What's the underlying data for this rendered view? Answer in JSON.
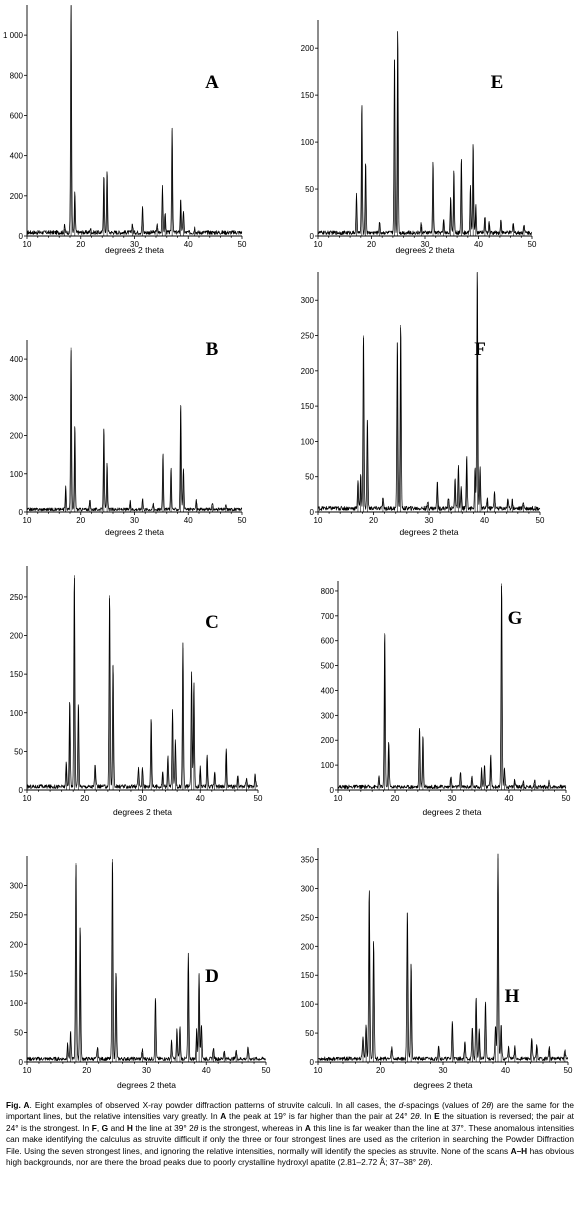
{
  "chart_data": [
    {
      "type": "line",
      "title": "A",
      "xlabel": "degrees 2 theta",
      "ylabel": "",
      "xlim": [
        10,
        50
      ],
      "ylim": [
        0,
        1150
      ],
      "xticks": [
        10,
        20,
        30,
        40,
        50
      ],
      "yticks": [
        0,
        200,
        400,
        600,
        800,
        1000
      ],
      "ytick_labels": [
        "0",
        "200",
        "400",
        "600",
        "800",
        "1 000"
      ],
      "series": [
        {
          "peaks": [
            [
              17.0,
              35
            ],
            [
              18.2,
              1150
            ],
            [
              18.9,
              200
            ],
            [
              21.8,
              20
            ],
            [
              24.3,
              290
            ],
            [
              24.9,
              305
            ],
            [
              29.6,
              45
            ],
            [
              31.5,
              125
            ],
            [
              34.2,
              40
            ],
            [
              35.2,
              235
            ],
            [
              35.7,
              100
            ],
            [
              37.0,
              525
            ],
            [
              38.6,
              170
            ],
            [
              39.1,
              110
            ],
            [
              41.2,
              25
            ]
          ]
        }
      ]
    },
    {
      "type": "line",
      "title": "E",
      "xlabel": "degrees 2 theta",
      "ylabel": "",
      "xlim": [
        10,
        50
      ],
      "ylim": [
        0,
        230
      ],
      "xticks": [
        10,
        20,
        30,
        40,
        50
      ],
      "yticks": [
        0,
        50,
        100,
        150,
        200
      ],
      "ytick_labels": [
        "0",
        "50",
        "100",
        "150",
        "200"
      ],
      "series": [
        {
          "peaks": [
            [
              17.2,
              40
            ],
            [
              18.2,
              137
            ],
            [
              18.9,
              76
            ],
            [
              21.5,
              12
            ],
            [
              24.3,
              188
            ],
            [
              24.9,
              218
            ],
            [
              29.3,
              10
            ],
            [
              31.5,
              75
            ],
            [
              33.5,
              15
            ],
            [
              34.8,
              40
            ],
            [
              35.4,
              67
            ],
            [
              36.8,
              80
            ],
            [
              38.5,
              50
            ],
            [
              39.0,
              95
            ],
            [
              39.5,
              30
            ],
            [
              41.2,
              18
            ],
            [
              42.0,
              12
            ],
            [
              44.2,
              15
            ],
            [
              46.5,
              12
            ],
            [
              48.5,
              10
            ]
          ]
        }
      ]
    },
    {
      "type": "line",
      "title": "B",
      "xlabel": "degrees 2 theta",
      "ylabel": "",
      "xlim": [
        10,
        50
      ],
      "ylim": [
        0,
        450
      ],
      "xticks": [
        10,
        20,
        30,
        40,
        50
      ],
      "yticks": [
        0,
        100,
        200,
        300,
        400
      ],
      "ytick_labels": [
        "0",
        "100",
        "200",
        "300",
        "400"
      ],
      "series": [
        {
          "peaks": [
            [
              17.2,
              60
            ],
            [
              18.2,
              430
            ],
            [
              18.9,
              220
            ],
            [
              21.7,
              25
            ],
            [
              24.3,
              218
            ],
            [
              24.9,
              120
            ],
            [
              29.2,
              20
            ],
            [
              31.5,
              30
            ],
            [
              33.5,
              15
            ],
            [
              35.3,
              148
            ],
            [
              36.8,
              110
            ],
            [
              38.6,
              280
            ],
            [
              39.1,
              110
            ],
            [
              41.5,
              25
            ],
            [
              44.5,
              15
            ],
            [
              47.0,
              10
            ]
          ]
        }
      ]
    },
    {
      "type": "line",
      "title": "F",
      "xlabel": "degrees 2 theta",
      "ylabel": "",
      "xlim": [
        10,
        50
      ],
      "ylim": [
        0,
        340
      ],
      "xticks": [
        10,
        20,
        30,
        40,
        50
      ],
      "yticks": [
        0,
        50,
        100,
        150,
        200,
        250,
        300
      ],
      "ytick_labels": [
        "0",
        "50",
        "100",
        "150",
        "200",
        "250",
        "300"
      ],
      "series": [
        {
          "peaks": [
            [
              17.2,
              40
            ],
            [
              17.7,
              50
            ],
            [
              18.2,
              250
            ],
            [
              18.9,
              130
            ],
            [
              21.7,
              15
            ],
            [
              24.3,
              240
            ],
            [
              24.9,
              265
            ],
            [
              29.8,
              10
            ],
            [
              31.5,
              40
            ],
            [
              33.5,
              15
            ],
            [
              34.7,
              45
            ],
            [
              35.3,
              60
            ],
            [
              35.8,
              30
            ],
            [
              36.8,
              75
            ],
            [
              38.3,
              60
            ],
            [
              38.7,
              340
            ],
            [
              39.2,
              60
            ],
            [
              40.5,
              15
            ],
            [
              41.8,
              25
            ],
            [
              44.2,
              15
            ],
            [
              45.0,
              12
            ],
            [
              47.0,
              10
            ]
          ]
        }
      ]
    },
    {
      "type": "line",
      "title": "C",
      "xlabel": "degrees 2 theta",
      "ylabel": "",
      "xlim": [
        10,
        50
      ],
      "ylim": [
        0,
        290
      ],
      "xticks": [
        10,
        20,
        30,
        40,
        50
      ],
      "yticks": [
        0,
        50,
        100,
        150,
        200,
        250
      ],
      "ytick_labels": [
        "0",
        "50",
        "100",
        "150",
        "200",
        "250"
      ],
      "series": [
        {
          "peaks": [
            [
              16.8,
              30
            ],
            [
              17.4,
              113
            ],
            [
              18.2,
              278
            ],
            [
              18.9,
              108
            ],
            [
              21.8,
              30
            ],
            [
              24.3,
              252
            ],
            [
              24.9,
              162
            ],
            [
              29.3,
              25
            ],
            [
              30.0,
              25
            ],
            [
              31.5,
              90
            ],
            [
              33.5,
              20
            ],
            [
              34.4,
              40
            ],
            [
              35.2,
              100
            ],
            [
              35.7,
              60
            ],
            [
              37.0,
              184
            ],
            [
              38.5,
              148
            ],
            [
              38.9,
              135
            ],
            [
              40.0,
              25
            ],
            [
              41.2,
              42
            ],
            [
              42.5,
              20
            ],
            [
              44.5,
              50
            ],
            [
              46.5,
              15
            ],
            [
              48.0,
              12
            ],
            [
              49.5,
              18
            ]
          ]
        }
      ]
    },
    {
      "type": "line",
      "title": "G",
      "xlabel": "degrees 2 theta",
      "ylabel": "",
      "xlim": [
        10,
        50
      ],
      "ylim": [
        0,
        840
      ],
      "xticks": [
        10,
        20,
        30,
        40,
        50
      ],
      "yticks": [
        0,
        100,
        200,
        300,
        400,
        500,
        600,
        700,
        800
      ],
      "ytick_labels": [
        "0",
        "100",
        "200",
        "300",
        "400",
        "500",
        "600",
        "700",
        "800"
      ],
      "series": [
        {
          "peaks": [
            [
              17.2,
              40
            ],
            [
              18.2,
              630
            ],
            [
              18.9,
              190
            ],
            [
              24.3,
              240
            ],
            [
              24.9,
              210
            ],
            [
              29.8,
              45
            ],
            [
              31.5,
              60
            ],
            [
              33.5,
              40
            ],
            [
              35.2,
              70
            ],
            [
              35.7,
              90
            ],
            [
              36.8,
              130
            ],
            [
              38.7,
              830
            ],
            [
              39.2,
              80
            ],
            [
              41.0,
              30
            ],
            [
              42.5,
              25
            ],
            [
              44.5,
              25
            ],
            [
              47.0,
              20
            ]
          ]
        }
      ]
    },
    {
      "type": "line",
      "title": "D",
      "xlabel": "degrees 2 theta",
      "ylabel": "",
      "xlim": [
        10,
        50
      ],
      "ylim": [
        0,
        350
      ],
      "xticks": [
        10,
        20,
        30,
        40,
        50
      ],
      "yticks": [
        0,
        50,
        100,
        150,
        200,
        250,
        300
      ],
      "ytick_labels": [
        "0",
        "50",
        "100",
        "150",
        "200",
        "250",
        "300"
      ],
      "series": [
        {
          "peaks": [
            [
              16.8,
              25
            ],
            [
              17.3,
              45
            ],
            [
              18.2,
              338
            ],
            [
              18.9,
              228
            ],
            [
              21.8,
              20
            ],
            [
              24.3,
              345
            ],
            [
              24.9,
              150
            ],
            [
              29.3,
              15
            ],
            [
              31.5,
              105
            ],
            [
              34.2,
              30
            ],
            [
              35.1,
              50
            ],
            [
              35.6,
              55
            ],
            [
              37.0,
              178
            ],
            [
              38.4,
              50
            ],
            [
              38.8,
              148
            ],
            [
              39.2,
              60
            ],
            [
              41.2,
              20
            ],
            [
              43.0,
              15
            ],
            [
              45.0,
              15
            ],
            [
              47.0,
              20
            ]
          ]
        }
      ]
    },
    {
      "type": "line",
      "title": "H",
      "xlabel": "degrees 2 theta",
      "ylabel": "",
      "xlim": [
        10,
        50
      ],
      "ylim": [
        0,
        370
      ],
      "xticks": [
        10,
        20,
        30,
        40,
        50
      ],
      "yticks": [
        0,
        50,
        100,
        150,
        200,
        250,
        300,
        350
      ],
      "ytick_labels": [
        "0",
        "50",
        "100",
        "150",
        "200",
        "250",
        "300",
        "350"
      ],
      "series": [
        {
          "peaks": [
            [
              17.2,
              40
            ],
            [
              17.7,
              60
            ],
            [
              18.2,
              297
            ],
            [
              18.9,
              205
            ],
            [
              21.8,
              20
            ],
            [
              24.3,
              258
            ],
            [
              24.9,
              168
            ],
            [
              29.3,
              25
            ],
            [
              31.5,
              65
            ],
            [
              33.5,
              30
            ],
            [
              34.7,
              55
            ],
            [
              35.3,
              110
            ],
            [
              35.8,
              50
            ],
            [
              36.8,
              100
            ],
            [
              38.4,
              60
            ],
            [
              38.8,
              352
            ],
            [
              39.3,
              60
            ],
            [
              40.5,
              20
            ],
            [
              41.5,
              20
            ],
            [
              44.2,
              35
            ],
            [
              45.0,
              25
            ],
            [
              47.0,
              20
            ],
            [
              49.5,
              15
            ]
          ]
        }
      ]
    }
  ],
  "caption": {
    "fig_label": "Fig. A",
    "segments": [
      {
        "text": "Fig. A",
        "bold": true
      },
      {
        "text": ". Eight examples of observed X-ray powder diffraction patterns of struvite calculi. In all cases, the "
      },
      {
        "text": "d",
        "italic": true
      },
      {
        "text": "-spacings (values of 2"
      },
      {
        "text": "θ",
        "italic": true
      },
      {
        "text": ") are the same for the important lines, but the relative intensities vary greatly. In "
      },
      {
        "text": "A",
        "bold": true
      },
      {
        "text": " the peak at 19° is far higher than the pair at 24° 2"
      },
      {
        "text": "θ",
        "italic": true
      },
      {
        "text": ". In "
      },
      {
        "text": "E",
        "bold": true
      },
      {
        "text": " the situation is reversed; the pair at 24° is the strongest. In "
      },
      {
        "text": "F",
        "bold": true
      },
      {
        "text": ", "
      },
      {
        "text": "G",
        "bold": true
      },
      {
        "text": " and "
      },
      {
        "text": "H",
        "bold": true
      },
      {
        "text": " the line at 39° 2"
      },
      {
        "text": "θ",
        "italic": true
      },
      {
        "text": " is the strongest, whereas in "
      },
      {
        "text": "A",
        "bold": true
      },
      {
        "text": " this line is far weaker than the line at 37°. These anomalous intensities can make identifying the calculus as struvite difficult if only the three or four strongest lines are used as the criterion in searching the Powder Diffraction File. Using the seven strongest lines, and ignoring the relative intensities, normally will identify the species as struvite. None of the scans "
      },
      {
        "text": "A–H",
        "bold": true
      },
      {
        "text": " has obvious high backgrounds, nor are there the broad peaks due to poorly crystalline hydroxyl apatite (2.81–2.72 Å; 37–38° 2"
      },
      {
        "text": "θ",
        "italic": true
      },
      {
        "text": ")."
      }
    ]
  }
}
